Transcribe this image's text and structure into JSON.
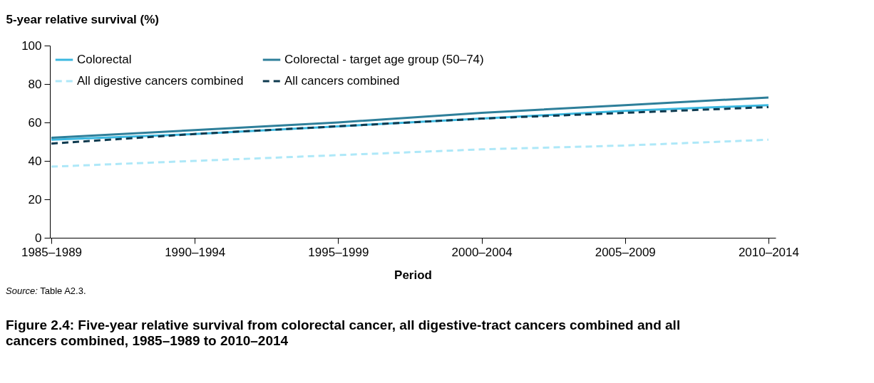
{
  "chart_data": {
    "type": "line",
    "title": "Figure 2.4: Five-year relative survival from colorectal cancer, all digestive-tract cancers combined and all cancers combined, 1985–1989 to 2010–2014",
    "xlabel": "Period",
    "ylabel": "5-year relative survival (%)",
    "annotations": [
      "Source: Table A2.3."
    ],
    "categories": [
      "1985–1989",
      "1990–1994",
      "1995–1999",
      "2000–2004",
      "2005–2009",
      "2010–2014"
    ],
    "series": [
      {
        "name": "Colorectal",
        "color": "#3bb8e0",
        "line_style": "solid",
        "values": [
          51,
          54,
          58,
          62,
          66,
          69
        ]
      },
      {
        "name": "Colorectal - target age group (50–74)",
        "color": "#2e7f9a",
        "line_style": "solid",
        "values": [
          52,
          56,
          60,
          65,
          69,
          73
        ]
      },
      {
        "name": "All digestive cancers combined",
        "color": "#aee8f8",
        "line_style": "dashed",
        "values": [
          37,
          40,
          43,
          46,
          48,
          51
        ]
      },
      {
        "name": "All cancers combined",
        "color": "#0e3a4f",
        "line_style": "dashed",
        "values": [
          49,
          54,
          58,
          62,
          65,
          68
        ]
      }
    ],
    "ylim": [
      0,
      100
    ],
    "yticks": [
      0,
      20,
      40,
      60,
      80,
      100
    ],
    "grid": false,
    "legend": "top left"
  }
}
